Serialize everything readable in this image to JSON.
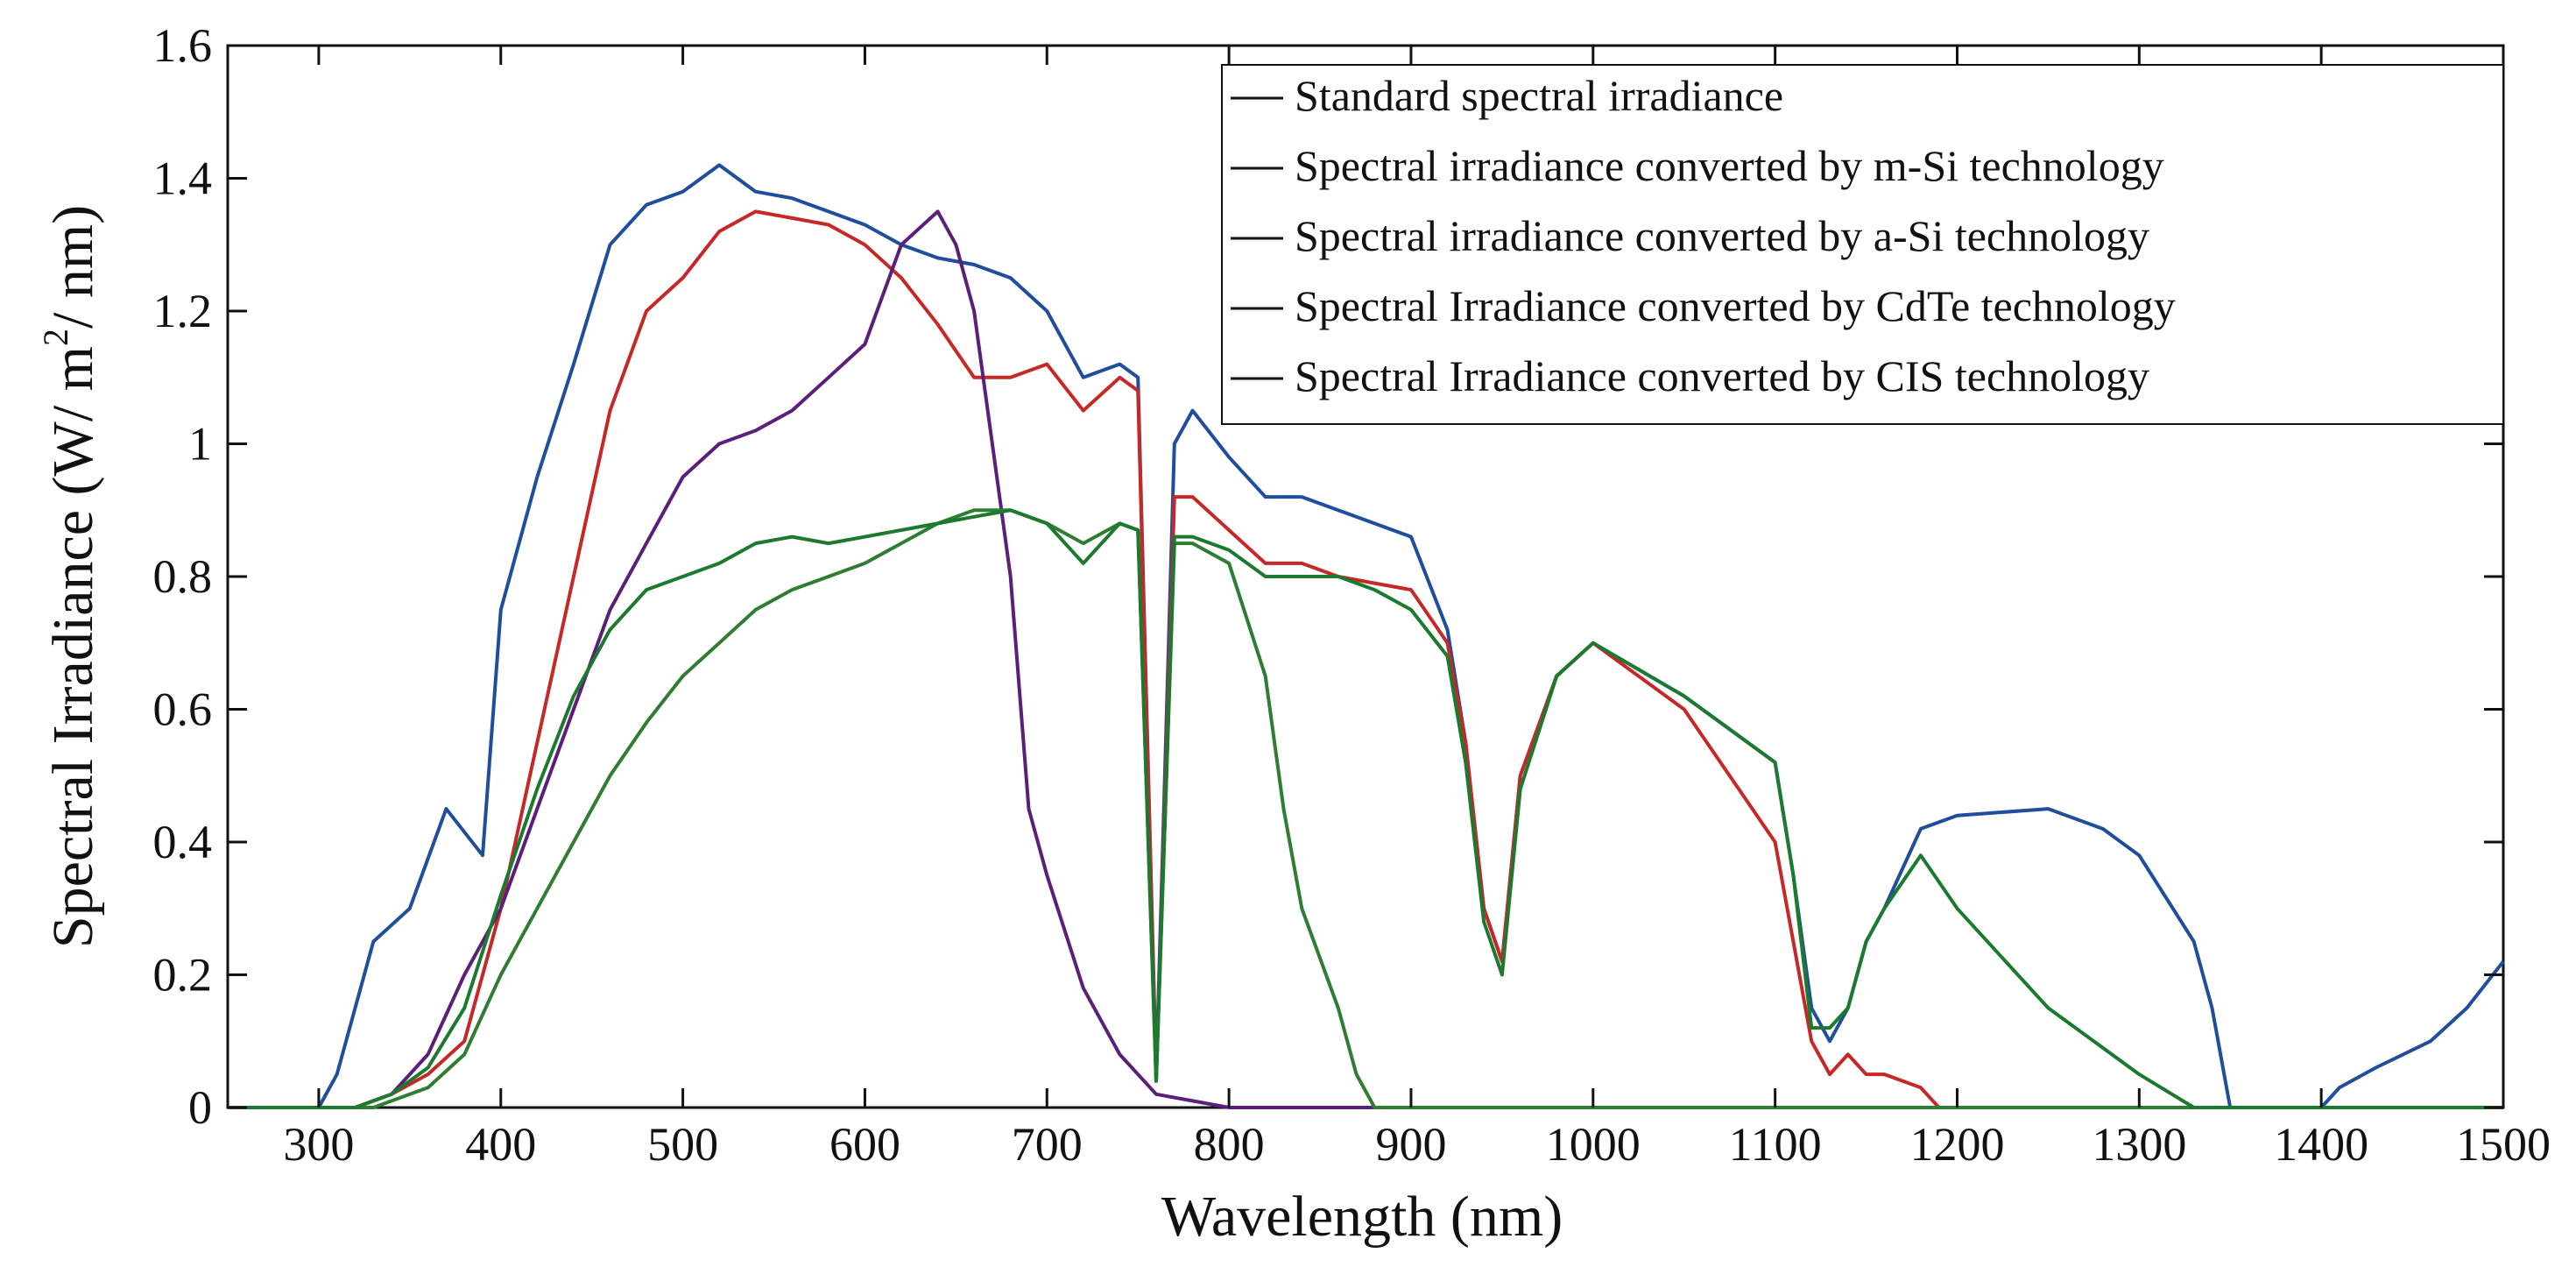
{
  "chart_data": {
    "type": "line",
    "xlabel": "Wavelength (nm)",
    "ylabel_parts": [
      "Spectral Irradiance (W/ m",
      "2",
      "/ nm)"
    ],
    "xlim": [
      250,
      1500
    ],
    "ylim": [
      0,
      1.6
    ],
    "xticks": [
      300,
      400,
      500,
      600,
      700,
      800,
      900,
      1000,
      1100,
      1200,
      1300,
      1400,
      1500
    ],
    "yticks": [
      0,
      0.2,
      0.4,
      0.6,
      0.8,
      1,
      1.2,
      1.4,
      1.6
    ],
    "ytick_labels": [
      "0",
      "0.2",
      "0.4",
      "0.6",
      "0.8",
      "1",
      "1.2",
      "1.4",
      "1.6"
    ],
    "legend_position": "top-right",
    "grid": false,
    "series": [
      {
        "name": "Standard spectral irradiance",
        "color": "#1f4e9c",
        "x": [
          250,
          300,
          310,
          330,
          350,
          370,
          390,
          400,
          420,
          440,
          460,
          480,
          500,
          520,
          540,
          560,
          580,
          600,
          620,
          640,
          660,
          680,
          700,
          720,
          740,
          750,
          760,
          770,
          780,
          800,
          820,
          840,
          860,
          880,
          900,
          920,
          930,
          940,
          950,
          960,
          980,
          1000,
          1050,
          1100,
          1110,
          1120,
          1130,
          1140,
          1150,
          1160,
          1180,
          1200,
          1250,
          1280,
          1300,
          1330,
          1340,
          1350,
          1360,
          1400,
          1410,
          1430,
          1460,
          1480,
          1500
        ],
        "y": [
          0,
          0,
          0.05,
          0.25,
          0.3,
          0.45,
          0.38,
          0.75,
          0.95,
          1.12,
          1.3,
          1.36,
          1.38,
          1.42,
          1.38,
          1.37,
          1.35,
          1.33,
          1.3,
          1.28,
          1.27,
          1.25,
          1.2,
          1.1,
          1.12,
          1.1,
          0.05,
          1.0,
          1.05,
          0.98,
          0.92,
          0.92,
          0.9,
          0.88,
          0.86,
          0.72,
          0.55,
          0.3,
          0.22,
          0.5,
          0.65,
          0.7,
          0.62,
          0.52,
          0.35,
          0.15,
          0.1,
          0.15,
          0.25,
          0.3,
          0.42,
          0.44,
          0.45,
          0.42,
          0.38,
          0.25,
          0.15,
          0,
          0,
          0,
          0.03,
          0.06,
          0.1,
          0.15,
          0.22
        ]
      },
      {
        "name": "Spectral irradiance converted by m-Si technology",
        "color": "#c62828",
        "x": [
          250,
          320,
          340,
          360,
          380,
          400,
          420,
          440,
          460,
          480,
          500,
          520,
          540,
          560,
          580,
          600,
          620,
          640,
          660,
          680,
          700,
          720,
          740,
          750,
          760,
          770,
          780,
          800,
          820,
          840,
          860,
          880,
          900,
          920,
          930,
          940,
          950,
          960,
          980,
          1000,
          1050,
          1100,
          1110,
          1120,
          1130,
          1140,
          1150,
          1160,
          1180,
          1190,
          1500
        ],
        "y": [
          0,
          0,
          0.02,
          0.05,
          0.1,
          0.3,
          0.55,
          0.8,
          1.05,
          1.2,
          1.25,
          1.32,
          1.35,
          1.34,
          1.33,
          1.3,
          1.25,
          1.18,
          1.1,
          1.1,
          1.12,
          1.05,
          1.1,
          1.08,
          0.04,
          0.92,
          0.92,
          0.87,
          0.82,
          0.82,
          0.8,
          0.79,
          0.78,
          0.7,
          0.55,
          0.3,
          0.22,
          0.5,
          0.65,
          0.7,
          0.6,
          0.4,
          0.25,
          0.1,
          0.05,
          0.08,
          0.05,
          0.05,
          0.03,
          0,
          0
        ]
      },
      {
        "name": "Spectral irradiance converted by a-Si technology",
        "color": "#5b1f7a",
        "x": [
          250,
          320,
          340,
          360,
          380,
          400,
          420,
          440,
          460,
          480,
          500,
          520,
          540,
          560,
          580,
          600,
          620,
          640,
          650,
          660,
          680,
          690,
          700,
          720,
          740,
          760,
          780,
          800,
          1500
        ],
        "y": [
          0,
          0,
          0.02,
          0.08,
          0.2,
          0.3,
          0.45,
          0.6,
          0.75,
          0.85,
          0.95,
          1.0,
          1.02,
          1.05,
          1.1,
          1.15,
          1.3,
          1.35,
          1.3,
          1.2,
          0.8,
          0.45,
          0.35,
          0.18,
          0.08,
          0.02,
          0.01,
          0,
          0
        ]
      },
      {
        "name": "Spectral Irradiance converted by CdTe technology",
        "color": "#2e7d32",
        "x": [
          250,
          330,
          360,
          380,
          400,
          420,
          440,
          460,
          480,
          500,
          520,
          540,
          560,
          580,
          600,
          620,
          640,
          660,
          680,
          700,
          720,
          740,
          750,
          760,
          770,
          780,
          800,
          820,
          830,
          840,
          860,
          870,
          880,
          1500
        ],
        "y": [
          0,
          0,
          0.03,
          0.08,
          0.2,
          0.3,
          0.4,
          0.5,
          0.58,
          0.65,
          0.7,
          0.75,
          0.78,
          0.8,
          0.82,
          0.85,
          0.88,
          0.9,
          0.9,
          0.88,
          0.85,
          0.88,
          0.87,
          0.04,
          0.85,
          0.85,
          0.82,
          0.65,
          0.45,
          0.3,
          0.15,
          0.05,
          0,
          0
        ]
      },
      {
        "name": "Spectral Irradiance converted by CIS technology",
        "color": "#1b7a2e",
        "x": [
          250,
          320,
          340,
          360,
          380,
          400,
          420,
          440,
          460,
          480,
          500,
          520,
          540,
          560,
          580,
          600,
          620,
          640,
          660,
          680,
          700,
          720,
          740,
          750,
          760,
          770,
          780,
          800,
          820,
          840,
          860,
          880,
          900,
          920,
          930,
          940,
          950,
          960,
          980,
          1000,
          1050,
          1100,
          1110,
          1120,
          1130,
          1140,
          1150,
          1160,
          1180,
          1200,
          1250,
          1300,
          1330,
          1500
        ],
        "y": [
          0,
          0,
          0.02,
          0.06,
          0.15,
          0.32,
          0.48,
          0.62,
          0.72,
          0.78,
          0.8,
          0.82,
          0.85,
          0.86,
          0.85,
          0.86,
          0.87,
          0.88,
          0.89,
          0.9,
          0.88,
          0.82,
          0.88,
          0.87,
          0.04,
          0.86,
          0.86,
          0.84,
          0.8,
          0.8,
          0.8,
          0.78,
          0.75,
          0.68,
          0.52,
          0.28,
          0.2,
          0.48,
          0.65,
          0.7,
          0.62,
          0.52,
          0.35,
          0.12,
          0.12,
          0.15,
          0.25,
          0.3,
          0.38,
          0.3,
          0.15,
          0.05,
          0,
          0
        ]
      }
    ]
  }
}
